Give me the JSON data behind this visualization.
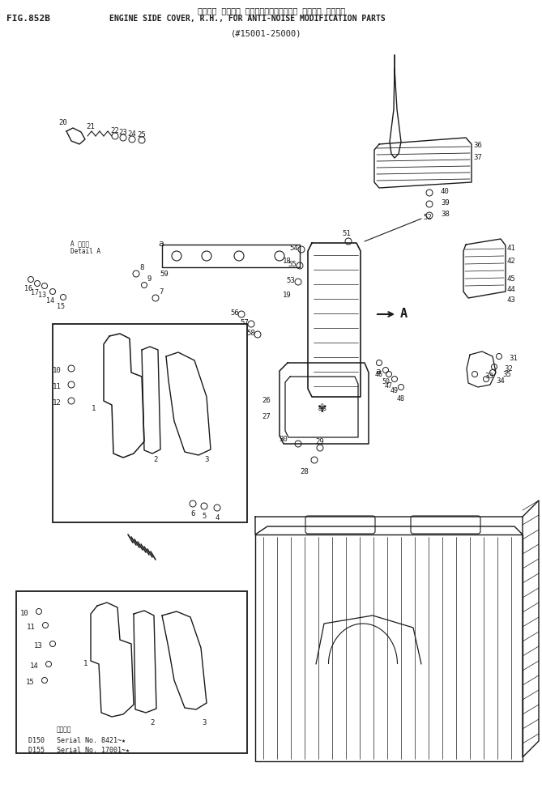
{
  "fig_number": "FIG.852B",
  "title_japanese": "エンジン サイドﾞ カバー、ミギ（ソウオン タイサク ブヒン）",
  "title_english": "ENGINE SIDE COVER, R.H., FOR ANTI-NOISE MODIFICATION PARTS",
  "serial_range": "(#15001-25000)",
  "serial_d150": "D150   Serial No. 8421~★",
  "serial_d155": "D155   Serial No. 17001~★",
  "bg_color": "#ffffff",
  "line_color": "#1a1a1a",
  "text_color": "#1a1a1a",
  "fig_width": 6.69,
  "fig_height": 9.94,
  "dpi": 100
}
